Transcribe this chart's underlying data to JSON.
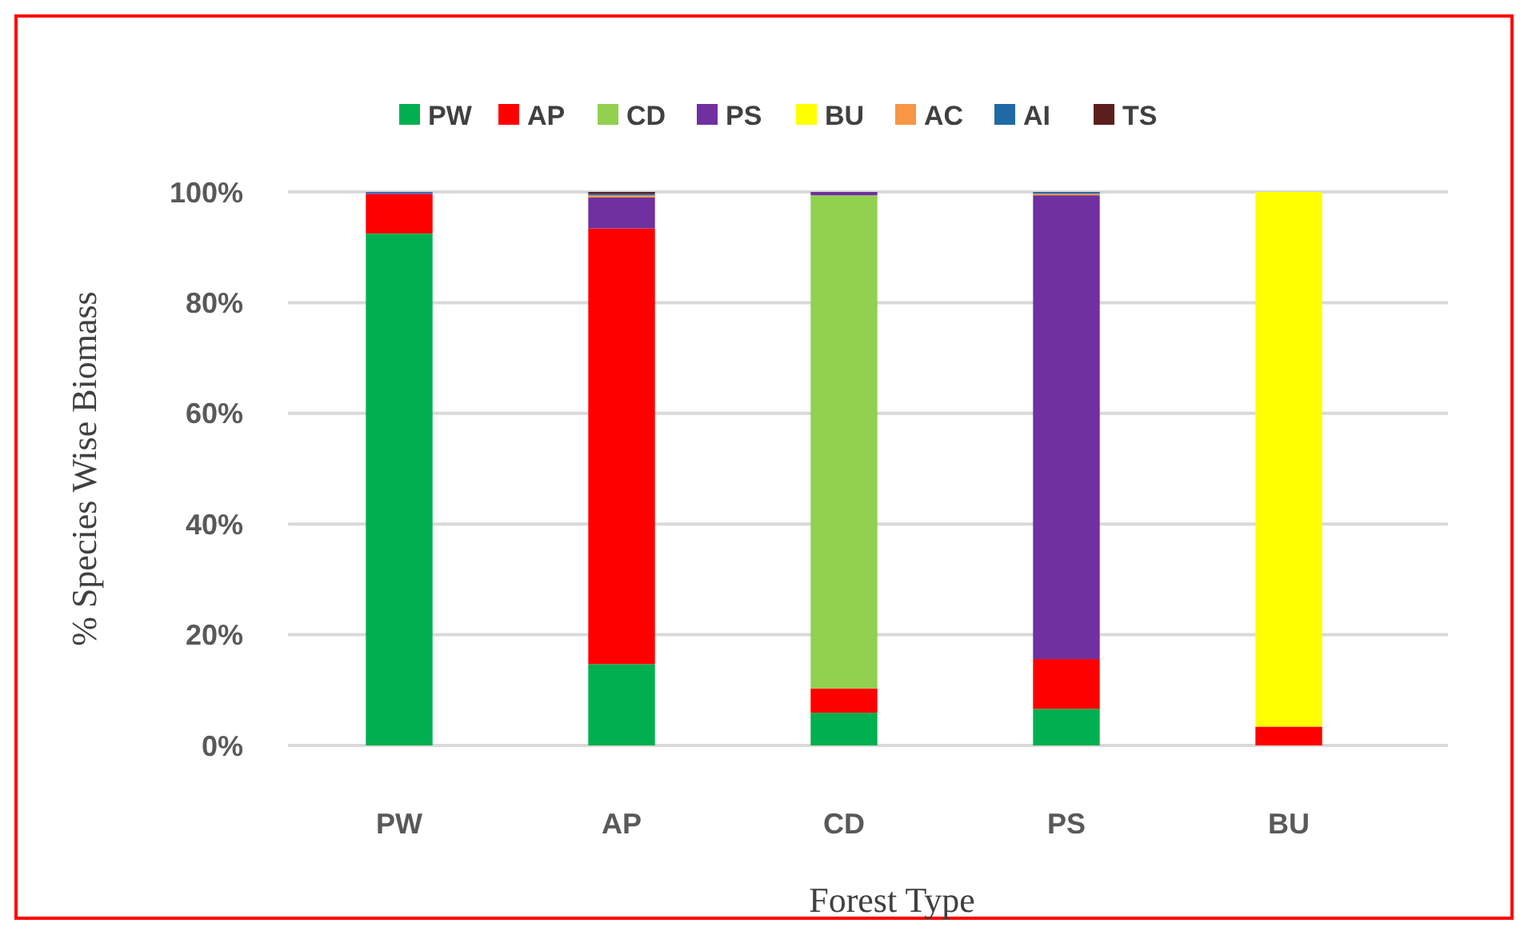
{
  "chart_data": {
    "type": "bar",
    "stacked": true,
    "xlabel": "Forest Type",
    "ylabel": "% Species Wise Biomass",
    "categories": [
      "PW",
      "AP",
      "CD",
      "PS",
      "BU"
    ],
    "series": [
      {
        "name": "PW",
        "color": "#00b050",
        "values": [
          92.5,
          14.7,
          5.9,
          6.6,
          0
        ]
      },
      {
        "name": "AP",
        "color": "#ff0000",
        "values": [
          7.1,
          78.7,
          4.4,
          9.0,
          3.4
        ]
      },
      {
        "name": "CD",
        "color": "#92d050",
        "values": [
          0,
          0,
          89.1,
          0,
          0
        ]
      },
      {
        "name": "PS",
        "color": "#7030a0",
        "values": [
          0.2,
          5.6,
          0.6,
          83.8,
          0
        ]
      },
      {
        "name": "BU",
        "color": "#ffff00",
        "values": [
          0,
          0,
          0,
          0,
          96.6
        ]
      },
      {
        "name": "AC",
        "color": "#f79646",
        "values": [
          0,
          0.4,
          0,
          0.3,
          0
        ]
      },
      {
        "name": "AI",
        "color": "#1f6aa5",
        "values": [
          0.2,
          0.3,
          0,
          0.3,
          0
        ]
      },
      {
        "name": "TS",
        "color": "#5a1e1e",
        "values": [
          0,
          0.3,
          0,
          0,
          0
        ]
      }
    ],
    "ylim": [
      0,
      100
    ],
    "yticks": [
      {
        "value": 0,
        "label": "0%"
      },
      {
        "value": 20,
        "label": "20%"
      },
      {
        "value": 40,
        "label": "40%"
      },
      {
        "value": 60,
        "label": "60%"
      },
      {
        "value": 80,
        "label": "80%"
      },
      {
        "value": 100,
        "label": "100%"
      }
    ],
    "grid": "y",
    "legend": "top"
  }
}
